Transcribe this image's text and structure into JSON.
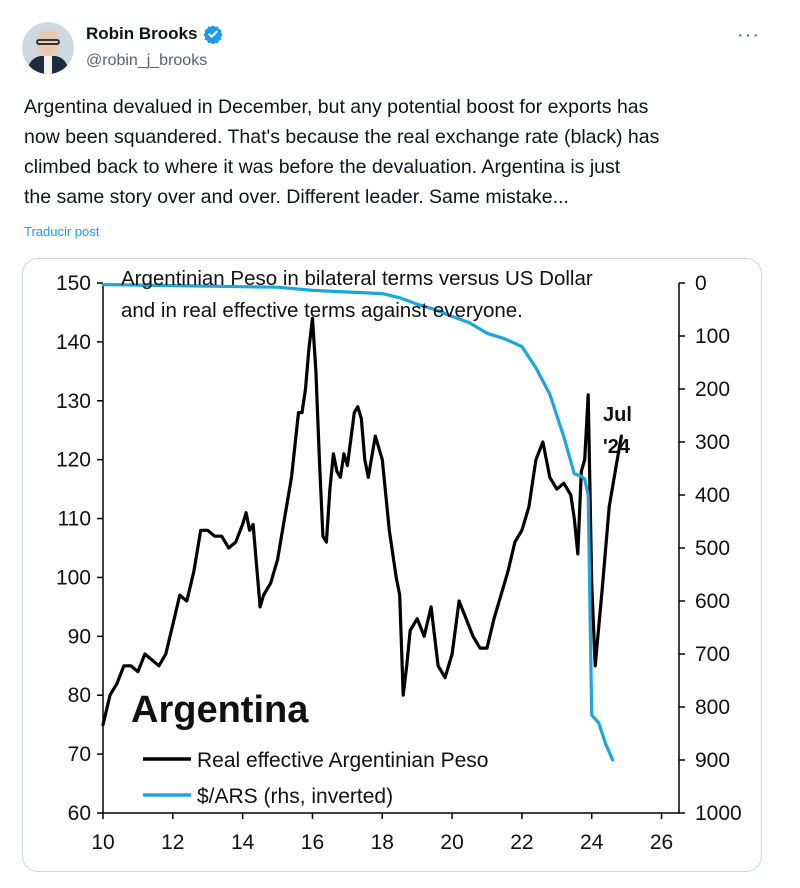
{
  "author": {
    "name": "Robin Brooks",
    "handle": "@robin_j_brooks",
    "verified": true,
    "avatar_icon": "profile-photo",
    "verified_color": "#1d9bf0"
  },
  "tweet": {
    "lines": [
      "Argentina devalued in December, but any potential boost for exports has",
      "now been squandered. That's because the real exchange rate (black) has",
      "climbed back to where it was before the devaluation. Argentina is just",
      "the same story over and over. Different leader. Same mistake..."
    ],
    "translate_label": "Traducir post",
    "more_icon": "ellipsis-icon"
  },
  "chart_data": {
    "type": "line",
    "title_lines": [
      "Argentinian Peso in bilateral terms versus US Dollar",
      "and in real effective terms against everyone."
    ],
    "big_label": "Argentina",
    "annotation_lines": [
      "Jul",
      "'24"
    ],
    "x_ticks": [
      "10",
      "12",
      "14",
      "16",
      "18",
      "20",
      "22",
      "24",
      "26"
    ],
    "xlim": [
      10,
      26.5
    ],
    "y_left_ticks": [
      "150",
      "140",
      "130",
      "120",
      "110",
      "100",
      "90",
      "80",
      "70",
      "60"
    ],
    "y_left_lim": [
      60,
      150
    ],
    "y_right_ticks": [
      "0",
      "100",
      "200",
      "300",
      "400",
      "500",
      "600",
      "700",
      "800",
      "900",
      "1000"
    ],
    "y_right_lim": [
      0,
      1000
    ],
    "y_right_inverted": true,
    "legend_placement": "bottom-left",
    "series": [
      {
        "name": "Real effective Argentinian Peso",
        "axis": "left",
        "color": "#000000",
        "points": [
          [
            10.0,
            75
          ],
          [
            10.2,
            80
          ],
          [
            10.4,
            82
          ],
          [
            10.6,
            85
          ],
          [
            10.8,
            85
          ],
          [
            11.0,
            84
          ],
          [
            11.2,
            87
          ],
          [
            11.4,
            86
          ],
          [
            11.6,
            85
          ],
          [
            11.8,
            87
          ],
          [
            12.0,
            92
          ],
          [
            12.2,
            97
          ],
          [
            12.4,
            96
          ],
          [
            12.6,
            101
          ],
          [
            12.8,
            108
          ],
          [
            13.0,
            108
          ],
          [
            13.2,
            107
          ],
          [
            13.4,
            107
          ],
          [
            13.6,
            105
          ],
          [
            13.8,
            106
          ],
          [
            14.0,
            109
          ],
          [
            14.1,
            111
          ],
          [
            14.2,
            108
          ],
          [
            14.3,
            109
          ],
          [
            14.4,
            102
          ],
          [
            14.5,
            95
          ],
          [
            14.6,
            97
          ],
          [
            14.8,
            99
          ],
          [
            15.0,
            103
          ],
          [
            15.2,
            110
          ],
          [
            15.4,
            117
          ],
          [
            15.6,
            128
          ],
          [
            15.7,
            128
          ],
          [
            15.8,
            132
          ],
          [
            15.9,
            139
          ],
          [
            16.0,
            144
          ],
          [
            16.1,
            135
          ],
          [
            16.2,
            120
          ],
          [
            16.3,
            107
          ],
          [
            16.4,
            106
          ],
          [
            16.5,
            115
          ],
          [
            16.6,
            121
          ],
          [
            16.7,
            118
          ],
          [
            16.8,
            117
          ],
          [
            16.9,
            121
          ],
          [
            17.0,
            119
          ],
          [
            17.2,
            128
          ],
          [
            17.3,
            129
          ],
          [
            17.4,
            127
          ],
          [
            17.5,
            120
          ],
          [
            17.6,
            117
          ],
          [
            17.8,
            124
          ],
          [
            18.0,
            120
          ],
          [
            18.2,
            108
          ],
          [
            18.4,
            100
          ],
          [
            18.5,
            97
          ],
          [
            18.6,
            80
          ],
          [
            18.7,
            85
          ],
          [
            18.8,
            91
          ],
          [
            19.0,
            93
          ],
          [
            19.2,
            90
          ],
          [
            19.4,
            95
          ],
          [
            19.6,
            85
          ],
          [
            19.8,
            83
          ],
          [
            20.0,
            87
          ],
          [
            20.2,
            96
          ],
          [
            20.4,
            93
          ],
          [
            20.6,
            90
          ],
          [
            20.8,
            88
          ],
          [
            21.0,
            88
          ],
          [
            21.2,
            93
          ],
          [
            21.4,
            97
          ],
          [
            21.6,
            101
          ],
          [
            21.8,
            106
          ],
          [
            22.0,
            108
          ],
          [
            22.2,
            112
          ],
          [
            22.4,
            120
          ],
          [
            22.6,
            123
          ],
          [
            22.8,
            117
          ],
          [
            23.0,
            115
          ],
          [
            23.2,
            116
          ],
          [
            23.4,
            114
          ],
          [
            23.5,
            110
          ],
          [
            23.6,
            104
          ],
          [
            23.7,
            118
          ],
          [
            23.8,
            120
          ],
          [
            23.9,
            131
          ],
          [
            24.0,
            99
          ],
          [
            24.1,
            85
          ],
          [
            24.3,
            98
          ],
          [
            24.5,
            112
          ],
          [
            24.7,
            119
          ],
          [
            24.85,
            124
          ]
        ]
      },
      {
        "name": "$/ARS (rhs, inverted)",
        "axis": "right",
        "color": "#1ea5dc",
        "points": [
          [
            10.0,
            3
          ],
          [
            11.0,
            4
          ],
          [
            12.0,
            5
          ],
          [
            13.0,
            6
          ],
          [
            14.0,
            7
          ],
          [
            15.0,
            8
          ],
          [
            16.0,
            14
          ],
          [
            17.0,
            17
          ],
          [
            18.0,
            20
          ],
          [
            18.5,
            28
          ],
          [
            19.0,
            40
          ],
          [
            19.5,
            50
          ],
          [
            20.0,
            63
          ],
          [
            20.5,
            75
          ],
          [
            21.0,
            95
          ],
          [
            21.5,
            105
          ],
          [
            22.0,
            120
          ],
          [
            22.4,
            160
          ],
          [
            22.8,
            210
          ],
          [
            23.2,
            290
          ],
          [
            23.5,
            360
          ],
          [
            23.7,
            365
          ],
          [
            23.8,
            370
          ],
          [
            23.9,
            400
          ],
          [
            24.0,
            815
          ],
          [
            24.2,
            830
          ],
          [
            24.4,
            870
          ],
          [
            24.6,
            900
          ]
        ]
      }
    ]
  }
}
